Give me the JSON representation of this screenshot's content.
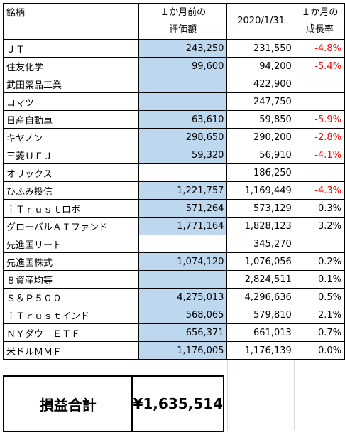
{
  "header": {
    "name": "銘柄",
    "prev_line1": "１か月前の",
    "prev_line2": "評価額",
    "date": "2020/1/31",
    "rate_line1": "１か月の",
    "rate_line2": "成長率"
  },
  "rows": [
    {
      "name": "ＪＴ",
      "prev": "243,250",
      "curr": "231,550",
      "rate": "-4.8%",
      "neg": true,
      "blue": true
    },
    {
      "name": "住友化学",
      "prev": "99,600",
      "curr": "94,200",
      "rate": "-5.4%",
      "neg": true,
      "blue": true
    },
    {
      "name": "武田薬品工業",
      "prev": "",
      "curr": "422,900",
      "rate": "",
      "neg": false,
      "blue": true
    },
    {
      "name": "コマツ",
      "prev": "",
      "curr": "247,750",
      "rate": "",
      "neg": false,
      "blue": true
    },
    {
      "name": "日産自動車",
      "prev": "63,610",
      "curr": "59,850",
      "rate": "-5.9%",
      "neg": true,
      "blue": true
    },
    {
      "name": "キヤノン",
      "prev": "298,650",
      "curr": "290,200",
      "rate": "-2.8%",
      "neg": true,
      "blue": true
    },
    {
      "name": "三菱ＵＦＪ",
      "prev": "59,320",
      "curr": "56,910",
      "rate": "-4.1%",
      "neg": true,
      "blue": true
    },
    {
      "name": "オリックス",
      "prev": "",
      "curr": "186,250",
      "rate": "",
      "neg": false,
      "blue": false
    },
    {
      "name": "ひふみ投信",
      "prev": "1,221,757",
      "curr": "1,169,449",
      "rate": "-4.3%",
      "neg": true,
      "blue": true
    },
    {
      "name": "ｉＴｒｕｓｔロボ",
      "prev": "571,264",
      "curr": "573,129",
      "rate": "0.3%",
      "neg": false,
      "blue": true
    },
    {
      "name": "グローバルＡＩファンド",
      "prev": "1,771,164",
      "curr": "1,828,123",
      "rate": "3.2%",
      "neg": false,
      "blue": true
    },
    {
      "name": "先進国リート",
      "prev": "",
      "curr": "345,270",
      "rate": "",
      "neg": false,
      "blue": false
    },
    {
      "name": "先進国株式",
      "prev": "1,074,120",
      "curr": "1,076,056",
      "rate": "0.2%",
      "neg": false,
      "blue": true
    },
    {
      "name": "８資産均等",
      "prev": "",
      "curr": "2,824,511",
      "rate": "0.1%",
      "neg": false,
      "blue": true
    },
    {
      "name": "Ｓ＆Ｐ５００",
      "prev": "4,275,013",
      "curr": "4,296,636",
      "rate": "0.5%",
      "neg": false,
      "blue": true
    },
    {
      "name": "ｉＴｒｕｓｔインド",
      "prev": "568,065",
      "curr": "579,810",
      "rate": "2.1%",
      "neg": false,
      "blue": true
    },
    {
      "name": "ＮＹダウ　ＥＴＦ",
      "prev": "656,371",
      "curr": "661,013",
      "rate": "0.7%",
      "neg": false,
      "blue": true
    },
    {
      "name": "米ドルＭＭＦ",
      "prev": "1,176,005",
      "curr": "1,176,139",
      "rate": "0.0%",
      "neg": false,
      "blue": true
    }
  ],
  "summary": {
    "label": "損益合計",
    "value": "¥1,635,514"
  },
  "colors": {
    "highlight": "#bdd7ee",
    "negative": "#ff0000"
  }
}
